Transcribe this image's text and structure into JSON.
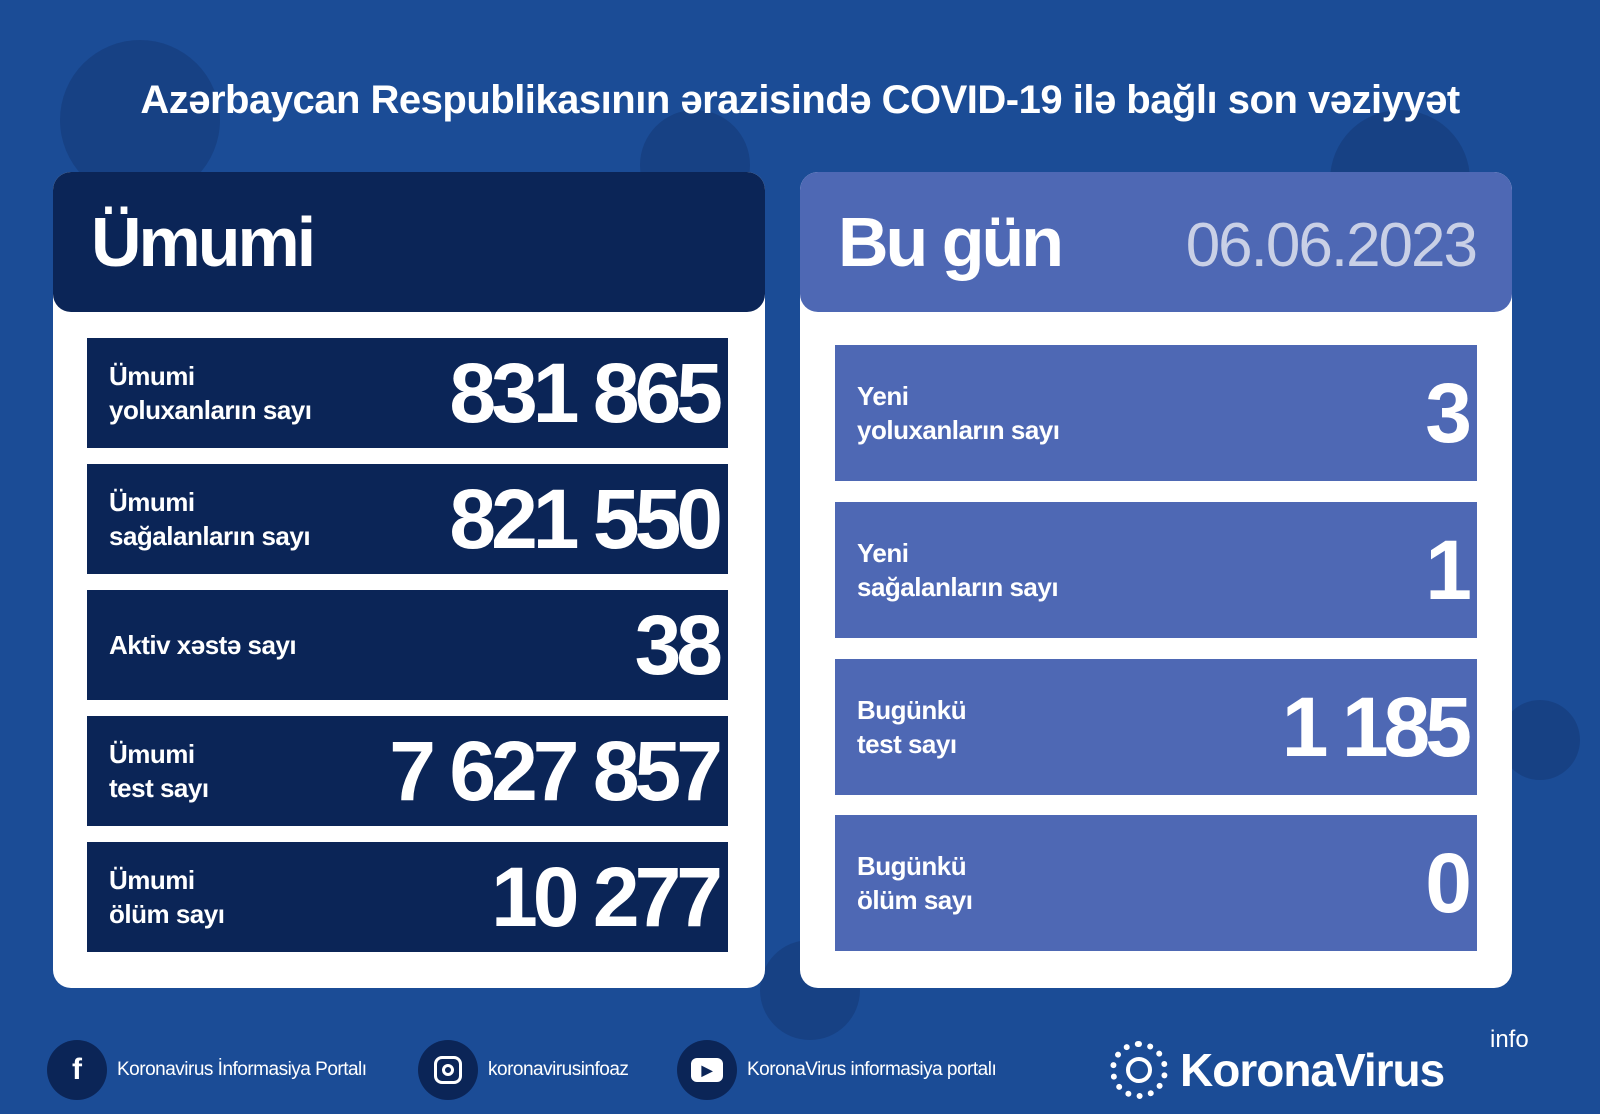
{
  "title": "Azərbaycan Respublikasının ərazisində COVID-19 ilə bağlı son vəziyyət",
  "colors": {
    "background": "#1b4c96",
    "dark_panel": "#0b2557",
    "light_panel": "#4e68b4",
    "card": "#ffffff"
  },
  "total": {
    "header": "Ümumi",
    "rows": [
      {
        "label1": "Ümumi",
        "label2": "yoluxanların sayı",
        "value": "831 865"
      },
      {
        "label1": "Ümumi",
        "label2": "sağalanların sayı",
        "value": "821 550"
      },
      {
        "label1": "Aktiv xəstə sayı",
        "label2": "",
        "value": "38"
      },
      {
        "label1": "Ümumi",
        "label2": "test sayı",
        "value": "7 627 857"
      },
      {
        "label1": "Ümumi",
        "label2": "ölüm sayı",
        "value": "10 277"
      }
    ]
  },
  "today": {
    "header": "Bu gün",
    "date": "06.06.2023",
    "rows": [
      {
        "label1": "Yeni",
        "label2": "yoluxanların sayı",
        "value": "3"
      },
      {
        "label1": "Yeni",
        "label2": "sağalanların sayı",
        "value": "1"
      },
      {
        "label1": "Bugünkü",
        "label2": "test sayı",
        "value": "1 185"
      },
      {
        "label1": "Bugünkü",
        "label2": "ölüm sayı",
        "value": "0"
      }
    ]
  },
  "footer": {
    "facebook": "Koronavirus İnformasiya Portalı",
    "instagram": "koronavirusinfoaz",
    "youtube": "KoronaVirus informasiya portalı",
    "brand": "KoronaVirus",
    "brand_sup": "info",
    "icons": [
      "facebook-icon",
      "instagram-icon",
      "youtube-icon",
      "virus-logo-icon"
    ]
  }
}
